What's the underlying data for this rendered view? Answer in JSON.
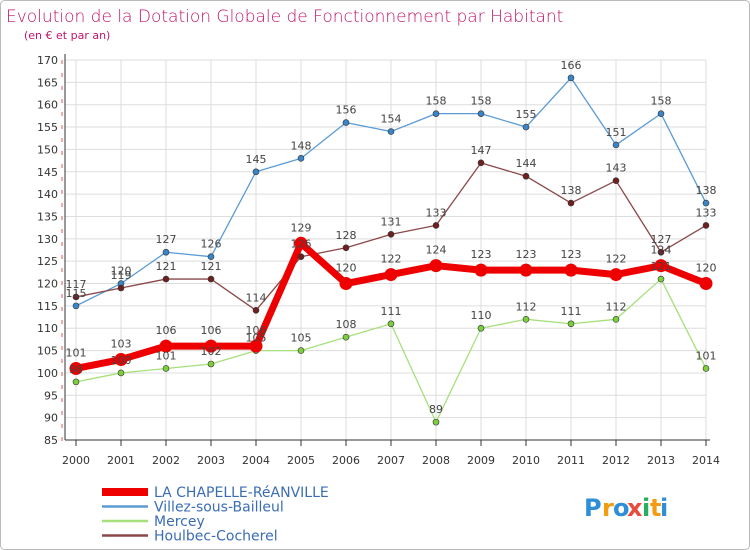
{
  "chart_data": {
    "type": "line",
    "title": "Evolution de la Dotation Globale de Fonctionnement par Habitant",
    "subtitle": "(en € et par an)",
    "x": [
      2000,
      2001,
      2002,
      2003,
      2004,
      2005,
      2006,
      2007,
      2008,
      2009,
      2010,
      2011,
      2012,
      2013,
      2014
    ],
    "ylim": [
      85,
      170
    ],
    "yticks": [
      85,
      90,
      95,
      100,
      105,
      110,
      115,
      120,
      125,
      130,
      135,
      140,
      145,
      150,
      155,
      160,
      165,
      170
    ],
    "grid": true,
    "legend_position": "bottom-left",
    "series": [
      {
        "name": "Villez-sous-Bailleul",
        "color": "#5b9bd5",
        "marker": "#3a85c8",
        "width": 1.3,
        "radius": 3,
        "values": [
          115,
          120,
          127,
          126,
          145,
          148,
          156,
          154,
          158,
          158,
          155,
          166,
          151,
          158,
          138
        ]
      },
      {
        "name": "Mercey",
        "color": "#a6e07c",
        "marker": "#7ccf3c",
        "width": 1.3,
        "radius": 3,
        "values": [
          98,
          100,
          101,
          102,
          105,
          105,
          108,
          111,
          89,
          110,
          112,
          111,
          112,
          121,
          101
        ]
      },
      {
        "name": "Houlbec-Cocherel",
        "color": "#8c4848",
        "marker": "#6e1f1f",
        "width": 1.3,
        "radius": 3,
        "values": [
          117,
          119,
          121,
          121,
          114,
          126,
          128,
          131,
          133,
          147,
          144,
          138,
          143,
          127,
          133
        ]
      },
      {
        "name": "LA CHAPELLE-RéANVILLE",
        "color": "#ee0000",
        "marker": "#ee0000",
        "width": 7,
        "radius": 6.5,
        "values": [
          101,
          103,
          106,
          106,
          106,
          129,
          120,
          122,
          124,
          123,
          123,
          123,
          122,
          124,
          120
        ]
      }
    ]
  },
  "legend_order": [
    3,
    0,
    1,
    2
  ],
  "brand": {
    "letters": [
      "P",
      "r",
      "o",
      "x",
      "i",
      "t",
      "i"
    ],
    "colors": [
      "#2e8fd6",
      "#f39c12",
      "#2e8fd6",
      "#e74c3c",
      "#27ae60",
      "#f39c12",
      "#2e8fd6"
    ]
  },
  "colors": {
    "title": "#c0156b",
    "frame": "#bbbbbb",
    "grid": "#dddddd",
    "axis": "#333333",
    "label": "#333333"
  }
}
